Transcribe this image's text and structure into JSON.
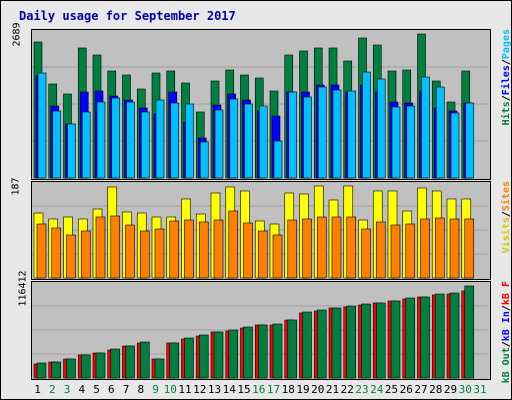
{
  "title": "Daily usage for September 2017",
  "colors": {
    "hits": "#008040",
    "files": "#0000ff",
    "pages": "#00c0ff",
    "visits": "#ffff00",
    "sites": "#ff8000",
    "kbin": "#0000ff",
    "kbout": "#008040",
    "kbf": "#ff0000",
    "weekday_label": "#000000",
    "weekend_label": "#008040",
    "title": "#0000aa"
  },
  "legends": {
    "top": [
      "Hits",
      "Files",
      "Pages"
    ],
    "middle": [
      "Visits",
      "Sites"
    ],
    "bottom": [
      "kB Out",
      "kB In",
      "kB F"
    ]
  },
  "chart_data": [
    {
      "type": "bar",
      "panel": "hits-files-pages",
      "ymax_label": "2689",
      "ylim": [
        0,
        2689
      ],
      "grid": true,
      "categories": [
        "1",
        "2",
        "3",
        "4",
        "5",
        "6",
        "7",
        "8",
        "9",
        "10",
        "11",
        "12",
        "13",
        "14",
        "15",
        "16",
        "17",
        "18",
        "19",
        "20",
        "21",
        "22",
        "23",
        "24",
        "25",
        "26",
        "27",
        "28",
        "29",
        "30",
        "31"
      ],
      "series": [
        {
          "name": "Hits",
          "values": [
            2542,
            1750,
            1570,
            2429,
            2300,
            1997,
            1922,
            1659,
            1962,
            2006,
            1780,
            1232,
            1809,
            2012,
            1930,
            1860,
            1620,
            2290,
            2370,
            2420,
            2430,
            2180,
            2615,
            2480,
            1990,
            2020,
            2689,
            1820,
            1410,
            1990,
            0
          ]
        },
        {
          "name": "Files",
          "values": [
            1900,
            1350,
            1000,
            1610,
            1630,
            1530,
            1450,
            1300,
            1200,
            1610,
            1050,
            750,
            1360,
            1560,
            1450,
            1260,
            1150,
            1600,
            1600,
            1740,
            1740,
            1600,
            1740,
            1600,
            1410,
            1400,
            1630,
            1300,
            1250,
            1400,
            0
          ]
        },
        {
          "name": "Pages",
          "values": [
            1960,
            1260,
            1000,
            1240,
            1420,
            1490,
            1420,
            1230,
            1450,
            1400,
            1380,
            680,
            1270,
            1470,
            1380,
            1340,
            700,
            1600,
            1510,
            1700,
            1650,
            1620,
            1980,
            1840,
            1320,
            1340,
            1890,
            1690,
            1220,
            1400,
            0
          ]
        }
      ]
    },
    {
      "type": "bar",
      "panel": "visits-sites",
      "ymax_label": "187",
      "ylim": [
        0,
        187
      ],
      "grid": true,
      "categories": [
        "1",
        "2",
        "3",
        "4",
        "5",
        "6",
        "7",
        "8",
        "9",
        "10",
        "11",
        "12",
        "13",
        "14",
        "15",
        "16",
        "17",
        "18",
        "19",
        "20",
        "21",
        "22",
        "23",
        "24",
        "25",
        "26",
        "27",
        "28",
        "29",
        "30",
        "31"
      ],
      "series": [
        {
          "name": "Visits",
          "values": [
            132,
            120,
            124,
            120,
            140,
            185,
            134,
            132,
            125,
            124,
            160,
            130,
            172,
            185,
            176,
            115,
            110,
            172,
            170,
            186,
            158,
            187,
            117,
            177,
            176,
            136,
            182,
            176,
            160,
            160,
            0
          ]
        },
        {
          "name": "Sites",
          "values": [
            110,
            102,
            88,
            96,
            123,
            126,
            107,
            96,
            100,
            115,
            118,
            113,
            118,
            136,
            111,
            96,
            88,
            118,
            120,
            125,
            123,
            123,
            100,
            113,
            108,
            109,
            120,
            121,
            120,
            120,
            0
          ]
        }
      ]
    },
    {
      "type": "bar",
      "panel": "kbytes",
      "ymax_label": "116412",
      "ylim": [
        0,
        116412
      ],
      "grid": true,
      "categories": [
        "1",
        "2",
        "3",
        "4",
        "5",
        "6",
        "7",
        "8",
        "9",
        "10",
        "11",
        "12",
        "13",
        "14",
        "15",
        "16",
        "17",
        "18",
        "19",
        "20",
        "21",
        "22",
        "23",
        "24",
        "25",
        "26",
        "27",
        "28",
        "29",
        "30",
        "31"
      ],
      "series": [
        {
          "name": "kB F",
          "values": [
            18000,
            20500,
            24000,
            28500,
            32000,
            36000,
            40500,
            44000,
            24000,
            44000,
            49500,
            53500,
            58000,
            60000,
            63000,
            67000,
            67000,
            73000,
            82000,
            85000,
            88000,
            90000,
            93000,
            95000,
            97000,
            100000,
            102000,
            105000,
            106000,
            110000,
            0
          ]
        },
        {
          "name": "kB In",
          "values": [
            0,
            0,
            0,
            0,
            0,
            0,
            0,
            0,
            0,
            0,
            0,
            0,
            0,
            0,
            0,
            0,
            0,
            0,
            0,
            0,
            0,
            0,
            0,
            0,
            0,
            0,
            0,
            0,
            0,
            0,
            0
          ]
        },
        {
          "name": "kB Out",
          "values": [
            18500,
            20500,
            24000,
            29000,
            32000,
            36500,
            41000,
            45000,
            24500,
            44500,
            50000,
            54000,
            58500,
            60500,
            64000,
            67500,
            68000,
            74000,
            83000,
            86000,
            89000,
            91000,
            94000,
            95500,
            98000,
            101000,
            103000,
            106000,
            107000,
            116412,
            0
          ]
        }
      ]
    }
  ],
  "x_labels": [
    {
      "label": "1",
      "weekend": false
    },
    {
      "label": "2",
      "weekend": true
    },
    {
      "label": "3",
      "weekend": true
    },
    {
      "label": "4",
      "weekend": false
    },
    {
      "label": "5",
      "weekend": false
    },
    {
      "label": "6",
      "weekend": false
    },
    {
      "label": "7",
      "weekend": false
    },
    {
      "label": "8",
      "weekend": false
    },
    {
      "label": "9",
      "weekend": true
    },
    {
      "label": "10",
      "weekend": true
    },
    {
      "label": "11",
      "weekend": false
    },
    {
      "label": "12",
      "weekend": false
    },
    {
      "label": "13",
      "weekend": false
    },
    {
      "label": "14",
      "weekend": false
    },
    {
      "label": "15",
      "weekend": false
    },
    {
      "label": "16",
      "weekend": true
    },
    {
      "label": "17",
      "weekend": true
    },
    {
      "label": "18",
      "weekend": false
    },
    {
      "label": "19",
      "weekend": false
    },
    {
      "label": "20",
      "weekend": false
    },
    {
      "label": "21",
      "weekend": false
    },
    {
      "label": "22",
      "weekend": false
    },
    {
      "label": "23",
      "weekend": true
    },
    {
      "label": "24",
      "weekend": true
    },
    {
      "label": "25",
      "weekend": false
    },
    {
      "label": "26",
      "weekend": false
    },
    {
      "label": "27",
      "weekend": false
    },
    {
      "label": "28",
      "weekend": false
    },
    {
      "label": "29",
      "weekend": false
    },
    {
      "label": "30",
      "weekend": true
    },
    {
      "label": "31",
      "weekend": true
    }
  ]
}
